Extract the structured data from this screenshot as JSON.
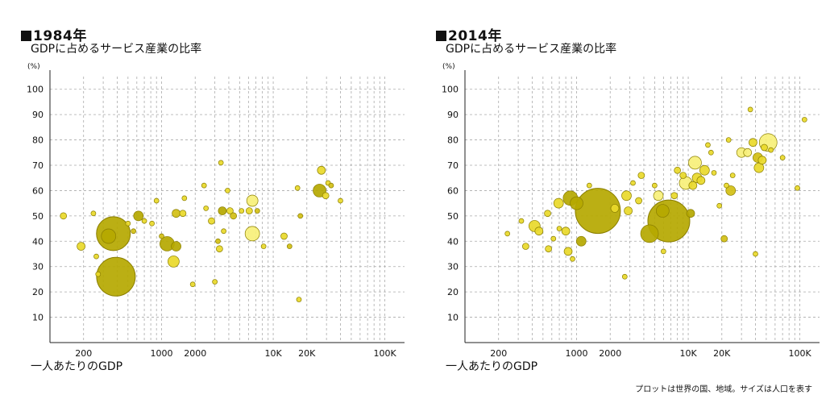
{
  "footnote": "プロットは世界の国、地域。サイズは人口を表す",
  "colors": {
    "highlight": "#f7f07a",
    "bright": "#e9d92a",
    "mid": "#d2bf14",
    "dark": "#b5a800",
    "outline": "#8a7e00",
    "grid": "#aaaaaa"
  },
  "chart_data": [
    {
      "type": "scatter",
      "title": "1984年",
      "subtitle": "GDPに占めるサービス産業の比率",
      "ylabel": "(%)",
      "xlabel": "一人あたりのGDP",
      "xscale": "log",
      "xlim": [
        100,
        150000
      ],
      "ylim": [
        0,
        105
      ],
      "grid": true,
      "x_ticks": [
        {
          "v": 200,
          "label": "200"
        },
        {
          "v": 1000,
          "label": "1000"
        },
        {
          "v": 2000,
          "label": "2000"
        },
        {
          "v": 10000,
          "label": "10K"
        },
        {
          "v": 20000,
          "label": "20K"
        },
        {
          "v": 100000,
          "label": "100K"
        }
      ],
      "y_ticks": [
        10,
        20,
        30,
        40,
        50,
        60,
        70,
        80,
        90,
        100
      ],
      "points": [
        {
          "x": 390,
          "y": 26,
          "s": 24,
          "c": "dark"
        },
        {
          "x": 370,
          "y": 43,
          "s": 21,
          "c": "dark"
        },
        {
          "x": 335,
          "y": 42,
          "s": 9,
          "c": "dark"
        },
        {
          "x": 1120,
          "y": 39,
          "s": 9,
          "c": "dark"
        },
        {
          "x": 1350,
          "y": 38,
          "s": 6,
          "c": "dark"
        },
        {
          "x": 1280,
          "y": 32,
          "s": 7,
          "c": "bright"
        },
        {
          "x": 620,
          "y": 50,
          "s": 6,
          "c": "dark"
        },
        {
          "x": 1350,
          "y": 51,
          "s": 5,
          "c": "mid"
        },
        {
          "x": 1550,
          "y": 51,
          "s": 4,
          "c": "bright"
        },
        {
          "x": 190,
          "y": 38,
          "s": 5,
          "c": "bright"
        },
        {
          "x": 132,
          "y": 50,
          "s": 4,
          "c": "bright"
        },
        {
          "x": 245,
          "y": 51,
          "s": 3,
          "c": "bright"
        },
        {
          "x": 260,
          "y": 34,
          "s": 3,
          "c": "bright"
        },
        {
          "x": 270,
          "y": 27,
          "s": 3,
          "c": "bright"
        },
        {
          "x": 500,
          "y": 47,
          "s": 3,
          "c": "bright"
        },
        {
          "x": 560,
          "y": 44,
          "s": 3,
          "c": "mid"
        },
        {
          "x": 700,
          "y": 48,
          "s": 3,
          "c": "bright"
        },
        {
          "x": 820,
          "y": 47,
          "s": 3,
          "c": "bright"
        },
        {
          "x": 900,
          "y": 56,
          "s": 3,
          "c": "bright"
        },
        {
          "x": 1000,
          "y": 42,
          "s": 3,
          "c": "mid"
        },
        {
          "x": 1600,
          "y": 57,
          "s": 3,
          "c": "bright"
        },
        {
          "x": 1900,
          "y": 23,
          "s": 3,
          "c": "bright"
        },
        {
          "x": 2500,
          "y": 53,
          "s": 3,
          "c": "bright"
        },
        {
          "x": 2800,
          "y": 48,
          "s": 4,
          "c": "bright"
        },
        {
          "x": 3000,
          "y": 24,
          "s": 3,
          "c": "bright"
        },
        {
          "x": 3200,
          "y": 40,
          "s": 3,
          "c": "mid"
        },
        {
          "x": 3300,
          "y": 37,
          "s": 4,
          "c": "bright"
        },
        {
          "x": 3500,
          "y": 52,
          "s": 5,
          "c": "dark"
        },
        {
          "x": 3600,
          "y": 44,
          "s": 3,
          "c": "bright"
        },
        {
          "x": 3900,
          "y": 60,
          "s": 3,
          "c": "bright"
        },
        {
          "x": 4100,
          "y": 52,
          "s": 4,
          "c": "bright"
        },
        {
          "x": 4400,
          "y": 50,
          "s": 4,
          "c": "mid"
        },
        {
          "x": 5200,
          "y": 52,
          "s": 3,
          "c": "bright"
        },
        {
          "x": 6100,
          "y": 52,
          "s": 4,
          "c": "bright"
        },
        {
          "x": 6500,
          "y": 56,
          "s": 7,
          "c": "highlight"
        },
        {
          "x": 6500,
          "y": 43,
          "s": 9,
          "c": "highlight"
        },
        {
          "x": 7200,
          "y": 52,
          "s": 3,
          "c": "mid"
        },
        {
          "x": 8200,
          "y": 38,
          "s": 3,
          "c": "bright"
        },
        {
          "x": 12500,
          "y": 42,
          "s": 4,
          "c": "bright"
        },
        {
          "x": 14000,
          "y": 38,
          "s": 3,
          "c": "mid"
        },
        {
          "x": 16500,
          "y": 61,
          "s": 3,
          "c": "bright"
        },
        {
          "x": 17500,
          "y": 50,
          "s": 3,
          "c": "mid"
        },
        {
          "x": 17000,
          "y": 17,
          "s": 3,
          "c": "bright"
        },
        {
          "x": 26000,
          "y": 60,
          "s": 8,
          "c": "dark"
        },
        {
          "x": 27000,
          "y": 68,
          "s": 5,
          "c": "bright"
        },
        {
          "x": 29500,
          "y": 58,
          "s": 4,
          "c": "bright"
        },
        {
          "x": 31000,
          "y": 63,
          "s": 3,
          "c": "bright"
        },
        {
          "x": 33000,
          "y": 62,
          "s": 3,
          "c": "mid"
        },
        {
          "x": 40000,
          "y": 56,
          "s": 3,
          "c": "bright"
        },
        {
          "x": 2400,
          "y": 62,
          "s": 3,
          "c": "bright"
        },
        {
          "x": 3400,
          "y": 71,
          "s": 3,
          "c": "bright"
        }
      ]
    },
    {
      "type": "scatter",
      "title": "2014年",
      "subtitle": "GDPに占めるサービス産業の比率",
      "ylabel": "(%)",
      "xlabel": "一人あたりのGDP",
      "xscale": "log",
      "xlim": [
        100,
        150000
      ],
      "ylim": [
        0,
        105
      ],
      "grid": true,
      "x_ticks": [
        {
          "v": 200,
          "label": "200"
        },
        {
          "v": 1000,
          "label": "1000"
        },
        {
          "v": 2000,
          "label": "2000"
        },
        {
          "v": 10000,
          "label": "10K"
        },
        {
          "v": 20000,
          "label": "20K"
        },
        {
          "v": 100000,
          "label": "100K"
        }
      ],
      "y_ticks": [
        10,
        20,
        30,
        40,
        50,
        60,
        70,
        80,
        90,
        100
      ],
      "points": [
        {
          "x": 1550,
          "y": 52,
          "s": 28,
          "c": "dark"
        },
        {
          "x": 6700,
          "y": 48,
          "s": 26,
          "c": "dark"
        },
        {
          "x": 5900,
          "y": 52,
          "s": 8,
          "c": "dark"
        },
        {
          "x": 4500,
          "y": 43,
          "s": 11,
          "c": "dark"
        },
        {
          "x": 1100,
          "y": 40,
          "s": 6,
          "c": "dark"
        },
        {
          "x": 880,
          "y": 57,
          "s": 9,
          "c": "dark"
        },
        {
          "x": 1000,
          "y": 55,
          "s": 8,
          "c": "dark"
        },
        {
          "x": 690,
          "y": 55,
          "s": 6,
          "c": "bright"
        },
        {
          "x": 420,
          "y": 46,
          "s": 7,
          "c": "bright"
        },
        {
          "x": 460,
          "y": 44,
          "s": 5,
          "c": "bright"
        },
        {
          "x": 240,
          "y": 43,
          "s": 3,
          "c": "bright"
        },
        {
          "x": 320,
          "y": 48,
          "s": 3,
          "c": "bright"
        },
        {
          "x": 350,
          "y": 38,
          "s": 4,
          "c": "bright"
        },
        {
          "x": 560,
          "y": 37,
          "s": 4,
          "c": "bright"
        },
        {
          "x": 620,
          "y": 41,
          "s": 3,
          "c": "bright"
        },
        {
          "x": 700,
          "y": 45,
          "s": 3,
          "c": "bright"
        },
        {
          "x": 800,
          "y": 44,
          "s": 5,
          "c": "bright"
        },
        {
          "x": 840,
          "y": 36,
          "s": 5,
          "c": "bright"
        },
        {
          "x": 920,
          "y": 33,
          "s": 3,
          "c": "bright"
        },
        {
          "x": 550,
          "y": 51,
          "s": 4,
          "c": "bright"
        },
        {
          "x": 1300,
          "y": 62,
          "s": 3,
          "c": "bright"
        },
        {
          "x": 2200,
          "y": 53,
          "s": 5,
          "c": "bright"
        },
        {
          "x": 2800,
          "y": 58,
          "s": 6,
          "c": "bright"
        },
        {
          "x": 2900,
          "y": 52,
          "s": 5,
          "c": "bright"
        },
        {
          "x": 2700,
          "y": 26,
          "s": 3,
          "c": "bright"
        },
        {
          "x": 3200,
          "y": 63,
          "s": 3,
          "c": "bright"
        },
        {
          "x": 3600,
          "y": 56,
          "s": 4,
          "c": "bright"
        },
        {
          "x": 3800,
          "y": 66,
          "s": 4,
          "c": "bright"
        },
        {
          "x": 5000,
          "y": 62,
          "s": 3,
          "c": "bright"
        },
        {
          "x": 5400,
          "y": 58,
          "s": 6,
          "c": "highlight"
        },
        {
          "x": 6000,
          "y": 36,
          "s": 3,
          "c": "bright"
        },
        {
          "x": 7500,
          "y": 58,
          "s": 4,
          "c": "bright"
        },
        {
          "x": 8000,
          "y": 68,
          "s": 4,
          "c": "bright"
        },
        {
          "x": 9000,
          "y": 66,
          "s": 4,
          "c": "bright"
        },
        {
          "x": 9500,
          "y": 63,
          "s": 8,
          "c": "highlight"
        },
        {
          "x": 10500,
          "y": 51,
          "s": 5,
          "c": "dark"
        },
        {
          "x": 11000,
          "y": 62,
          "s": 5,
          "c": "bright"
        },
        {
          "x": 11500,
          "y": 71,
          "s": 8,
          "c": "highlight"
        },
        {
          "x": 12000,
          "y": 65,
          "s": 6,
          "c": "bright"
        },
        {
          "x": 13000,
          "y": 64,
          "s": 5,
          "c": "bright"
        },
        {
          "x": 14000,
          "y": 68,
          "s": 6,
          "c": "bright"
        },
        {
          "x": 15000,
          "y": 78,
          "s": 3,
          "c": "bright"
        },
        {
          "x": 16000,
          "y": 75,
          "s": 3,
          "c": "bright"
        },
        {
          "x": 17000,
          "y": 67,
          "s": 3,
          "c": "bright"
        },
        {
          "x": 19000,
          "y": 54,
          "s": 3,
          "c": "bright"
        },
        {
          "x": 21000,
          "y": 41,
          "s": 4,
          "c": "mid"
        },
        {
          "x": 22000,
          "y": 62,
          "s": 3,
          "c": "bright"
        },
        {
          "x": 23000,
          "y": 80,
          "s": 3,
          "c": "bright"
        },
        {
          "x": 24000,
          "y": 60,
          "s": 6,
          "c": "mid"
        },
        {
          "x": 25000,
          "y": 66,
          "s": 3,
          "c": "bright"
        },
        {
          "x": 30000,
          "y": 75,
          "s": 6,
          "c": "highlight"
        },
        {
          "x": 34000,
          "y": 75,
          "s": 5,
          "c": "highlight"
        },
        {
          "x": 38000,
          "y": 79,
          "s": 5,
          "c": "bright"
        },
        {
          "x": 42000,
          "y": 73,
          "s": 6,
          "c": "mid"
        },
        {
          "x": 43000,
          "y": 69,
          "s": 6,
          "c": "bright"
        },
        {
          "x": 46000,
          "y": 72,
          "s": 5,
          "c": "bright"
        },
        {
          "x": 48000,
          "y": 77,
          "s": 4,
          "c": "bright"
        },
        {
          "x": 52000,
          "y": 79,
          "s": 11,
          "c": "highlight"
        },
        {
          "x": 55000,
          "y": 76,
          "s": 3,
          "c": "bright"
        },
        {
          "x": 36000,
          "y": 92,
          "s": 3,
          "c": "bright"
        },
        {
          "x": 40000,
          "y": 35,
          "s": 3,
          "c": "bright"
        },
        {
          "x": 70000,
          "y": 73,
          "s": 3,
          "c": "bright"
        },
        {
          "x": 110000,
          "y": 88,
          "s": 3,
          "c": "bright"
        },
        {
          "x": 95000,
          "y": 61,
          "s": 3,
          "c": "bright"
        }
      ]
    }
  ]
}
